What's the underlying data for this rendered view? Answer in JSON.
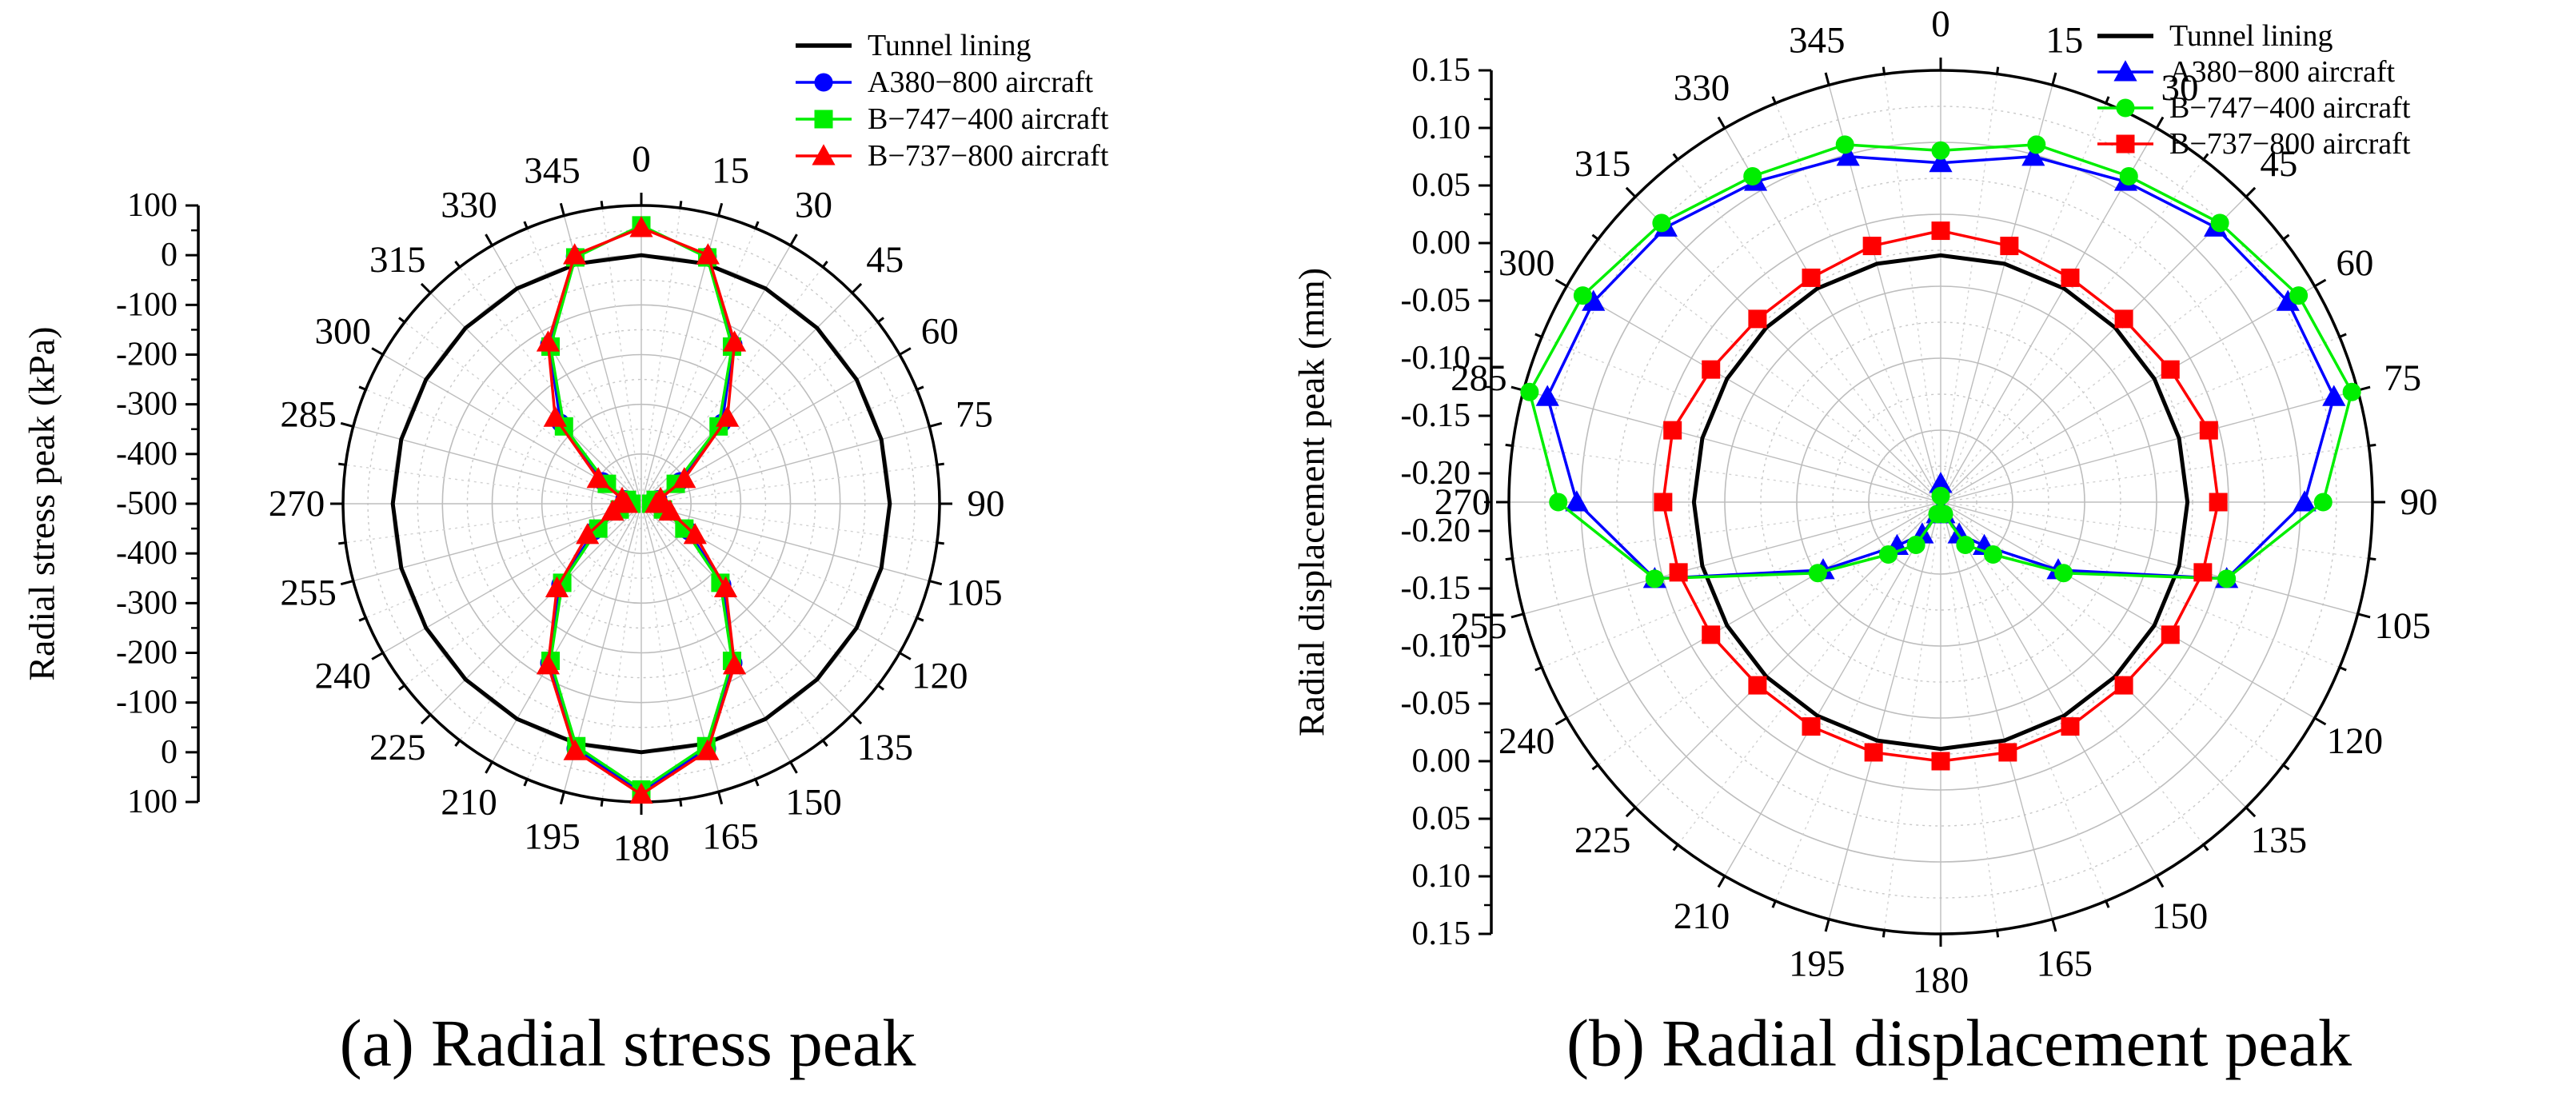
{
  "chart_data": [
    {
      "type": "polar-line",
      "panel": "a",
      "caption": "(a) Radial stress peak",
      "ylabel": "Radial stress peak (kPa)",
      "radial_axis": {
        "range": [
          -500,
          100
        ],
        "ticks": [
          100,
          0,
          -100,
          -200,
          -300,
          -400,
          -500,
          -400,
          -300,
          -200,
          -100,
          0,
          100
        ]
      },
      "angles": [
        0,
        15,
        30,
        45,
        60,
        75,
        90,
        105,
        120,
        135,
        150,
        165,
        180,
        195,
        210,
        225,
        240,
        255,
        270,
        285,
        300,
        315,
        330,
        345
      ],
      "angle_labels": [
        "0",
        "15",
        "30",
        "45",
        "60",
        "75",
        "90",
        "105",
        "120",
        "135",
        "150",
        "165",
        "180",
        "195",
        "210",
        "225",
        "240",
        "255",
        "270",
        "285",
        "300",
        "315",
        "330",
        "345"
      ],
      "series": [
        {
          "name": "Tunnel lining",
          "color": "#000000",
          "marker": "none",
          "values": [
            0,
            0,
            0,
            0,
            0,
            0,
            0,
            0,
            0,
            0,
            0,
            0,
            0,
            0,
            0,
            0,
            0,
            0,
            0,
            0,
            0,
            0,
            0,
            0
          ]
        },
        {
          "name": "A380−800 aircraft",
          "color": "#0000ff",
          "marker": "circle",
          "values": [
            58,
            15,
            -130,
            -270,
            -410,
            -465,
            -475,
            -450,
            -390,
            -270,
            -130,
            10,
            80,
            10,
            -130,
            -270,
            -390,
            -450,
            -475,
            -465,
            -410,
            -270,
            -130,
            15
          ]
        },
        {
          "name": "B−747−400 aircraft",
          "color": "#00ee00",
          "marker": "square",
          "values": [
            60,
            13,
            -135,
            -280,
            -420,
            -470,
            -480,
            -455,
            -400,
            -275,
            -135,
            5,
            75,
            5,
            -135,
            -275,
            -400,
            -455,
            -480,
            -470,
            -420,
            -280,
            -135,
            13
          ]
        },
        {
          "name": "B−737−800 aircraft",
          "color": "#ff0000",
          "marker": "triangle",
          "values": [
            55,
            18,
            -125,
            -255,
            -400,
            -460,
            -470,
            -440,
            -375,
            -260,
            -125,
            15,
            85,
            15,
            -125,
            -260,
            -375,
            -440,
            -470,
            -460,
            -400,
            -255,
            -125,
            18
          ]
        }
      ]
    },
    {
      "type": "polar-line",
      "panel": "b",
      "caption": "(b) Radial displacement peak",
      "ylabel": "Radial displacement peak (mm)",
      "radial_axis": {
        "range": [
          -0.2,
          0.15
        ],
        "ticks": [
          "0.15",
          "0.10",
          "0.05",
          "0.00",
          "-0.05",
          "-0.10",
          "-0.15",
          "-0.20",
          "-0.20",
          "-0.15",
          "-0.10",
          "-0.05",
          "0.00",
          "0.05",
          "0.10",
          "0.15"
        ]
      },
      "angles": [
        0,
        15,
        30,
        45,
        60,
        75,
        90,
        105,
        120,
        135,
        150,
        165,
        180,
        195,
        210,
        225,
        240,
        255,
        270,
        285,
        300,
        315,
        330,
        345
      ],
      "angle_labels": [
        "0",
        "15",
        "30",
        "45",
        "60",
        "75",
        "90",
        "105",
        "120",
        "135",
        "150",
        "165",
        "180",
        "195",
        "210",
        "225",
        "240",
        "255",
        "270",
        "285",
        "300",
        "315",
        "330",
        "345"
      ],
      "series": [
        {
          "name": "Tunnel lining",
          "color": "#000000",
          "marker": "none",
          "values": [
            0,
            0,
            0,
            0,
            0,
            0,
            0,
            0,
            0,
            0,
            0,
            0,
            0,
            0,
            0,
            0,
            0,
            0,
            0,
            0,
            0,
            0,
            0,
            0
          ]
        },
        {
          "name": "A380−800 aircraft",
          "color": "#0000ff",
          "marker": "triangle",
          "values": [
            0.075,
            0.09,
            0.1,
            0.115,
            0.125,
            0.13,
            0.095,
            0.04,
            -0.09,
            -0.15,
            -0.17,
            -0.19,
            -0.215,
            -0.19,
            -0.17,
            -0.15,
            -0.09,
            0.04,
            0.095,
            0.13,
            0.125,
            0.115,
            0.1,
            0.09
          ]
        },
        {
          "name": "B−747−400 aircraft",
          "color": "#00ee00",
          "marker": "circle",
          "values": [
            0.085,
            0.1,
            0.105,
            0.12,
            0.135,
            0.145,
            0.11,
            0.04,
            -0.085,
            -0.14,
            -0.16,
            -0.19,
            -0.205,
            -0.19,
            -0.16,
            -0.14,
            -0.085,
            0.04,
            0.11,
            0.145,
            0.135,
            0.12,
            0.105,
            0.1
          ]
        },
        {
          "name": "B−737−800 aircraft",
          "color": "#ff0000",
          "marker": "square",
          "values": [
            0.02,
            0.015,
            0.01,
            0.01,
            0.015,
            0.025,
            0.025,
            0.02,
            0.015,
            0.01,
            0.01,
            0.01,
            0.01,
            0.01,
            0.01,
            0.01,
            0.015,
            0.02,
            0.025,
            0.025,
            0.015,
            0.01,
            0.01,
            0.015
          ]
        }
      ]
    }
  ]
}
